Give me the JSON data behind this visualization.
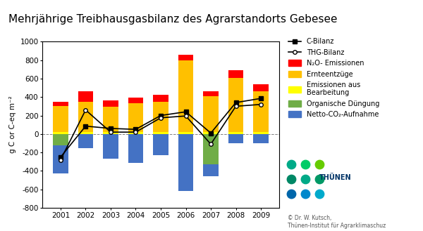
{
  "years": [
    2001,
    2002,
    2003,
    2004,
    2005,
    2006,
    2007,
    2008,
    2009
  ],
  "netto_co2": [
    -430,
    -150,
    -270,
    -310,
    -230,
    -620,
    -460,
    -100,
    -100
  ],
  "org_dung": [
    -120,
    0,
    0,
    0,
    0,
    0,
    -330,
    0,
    0
  ],
  "emiss_bearb": [
    20,
    20,
    20,
    20,
    20,
    20,
    20,
    20,
    20
  ],
  "ernte": [
    280,
    330,
    275,
    315,
    325,
    780,
    390,
    590,
    440
  ],
  "n2o": [
    50,
    110,
    70,
    60,
    80,
    60,
    55,
    80,
    80
  ],
  "c_bilanz": [
    -250,
    85,
    60,
    50,
    200,
    240,
    10,
    340,
    385
  ],
  "thg_bilanz": [
    -280,
    260,
    20,
    20,
    175,
    195,
    -110,
    300,
    320
  ],
  "bar_colors": {
    "netto_co2": "#4472C4",
    "org_dung": "#70AD47",
    "emiss_bearb": "#FFFF00",
    "ernte": "#FFC000",
    "n2o": "#FF0000"
  },
  "title": "Mehrjährige Treibhausgasbilanz des Agrarstandorts Gebesee",
  "ylabel": "g C or C-eq m⁻²",
  "ylim": [
    -800,
    1000
  ],
  "yticks": [
    -800,
    -600,
    -400,
    -200,
    0,
    200,
    400,
    600,
    800,
    1000
  ],
  "legend_c_bilanz": "C-Bilanz",
  "legend_thg_bilanz": "THG-Bilanz",
  "legend_n2o": "N₂O- Emissionen",
  "legend_ernte": "Ernteentzüge",
  "legend_emiss": "Emissionen aus\nBearbeitung",
  "legend_org": "Organische Düngung",
  "legend_netto": "Netto-CO₂-Aufnahme",
  "copyright_text": "© Dr. W. Kutsch,\nThünen-Institut für Agrarklimaschuz",
  "bg_color": "#FFFFFF",
  "title_fontsize": 11,
  "axis_fontsize": 7.5,
  "legend_fontsize": 7
}
